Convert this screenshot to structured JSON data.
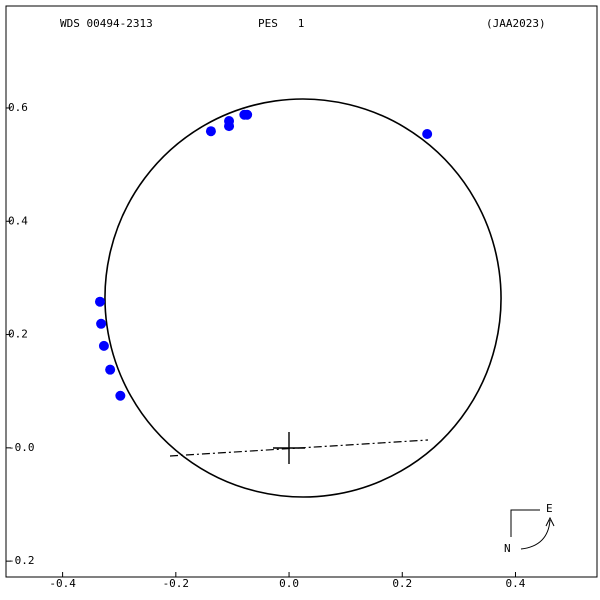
{
  "chart_data": {
    "type": "scatter",
    "title": "WDS 00494-2313",
    "subtitle": "PES   1",
    "reference": "(JAA2023)",
    "compass": {
      "east": "E",
      "north": "N"
    },
    "x": [
      -0.138,
      -0.106,
      -0.106,
      -0.079,
      -0.074,
      0.244,
      -0.334,
      -0.332,
      -0.327,
      -0.316,
      -0.298
    ],
    "values": [
      0.559,
      0.577,
      0.568,
      0.588,
      0.588,
      0.554,
      0.258,
      0.219,
      0.18,
      0.138,
      0.092
    ],
    "color": "#0000ff",
    "xlim": [
      -0.5,
      0.544
    ],
    "ylim": [
      -0.228,
      0.78
    ],
    "xticks": [
      -0.4,
      -0.2,
      {
        "value": 0,
        "label": "0.0"
      },
      0.2,
      0.4
    ],
    "yticks": [
      -0.2,
      {
        "value": 0,
        "label": "-0.0"
      },
      0.2,
      0.4,
      0.6
    ]
  }
}
